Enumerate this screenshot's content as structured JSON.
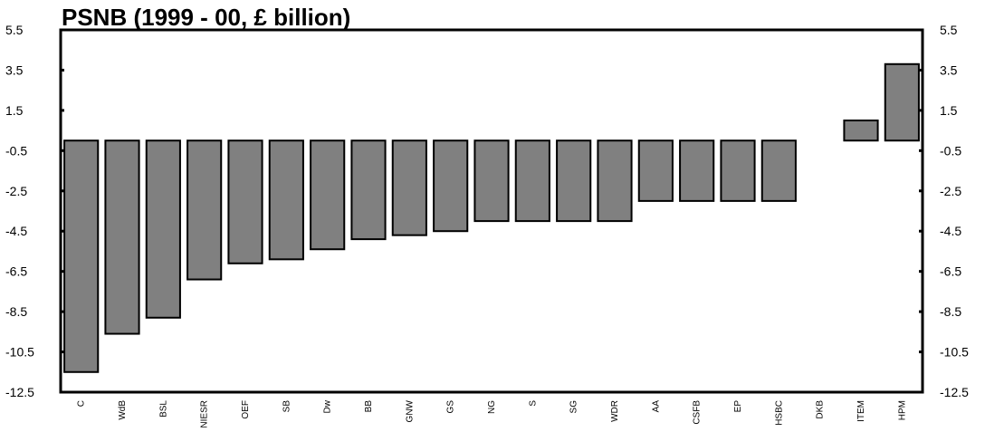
{
  "chart_data": {
    "type": "bar",
    "title": "PSNB (1999 - 00, £ billion)",
    "xlabel": "",
    "ylabel": "",
    "ylim": [
      -12.5,
      5.5
    ],
    "yticks": [
      "5.5",
      "3.5",
      "1.5",
      "-0.5",
      "-2.5",
      "-4.5",
      "-6.5",
      "-8.5",
      "-10.5",
      "-12.5"
    ],
    "categories": [
      "C",
      "WdB",
      "BSL",
      "NIESR",
      "OEF",
      "SB",
      "Dw",
      "BB",
      "GNW",
      "GS",
      "NG",
      "S",
      "SG",
      "WDR",
      "AA",
      "CSFB",
      "EP",
      "HSBC",
      "DKB",
      "ITEM",
      "HPM"
    ],
    "values": [
      -11.5,
      -9.6,
      -8.8,
      -6.9,
      -6.1,
      -5.9,
      -5.4,
      -4.9,
      -4.7,
      -4.5,
      -4.0,
      -4.0,
      -4.0,
      -4.0,
      -3.0,
      -3.0,
      -3.0,
      -3.0,
      0.0,
      1.0,
      3.8
    ],
    "bar_color": "#808080",
    "grid": false,
    "legend": "none"
  }
}
